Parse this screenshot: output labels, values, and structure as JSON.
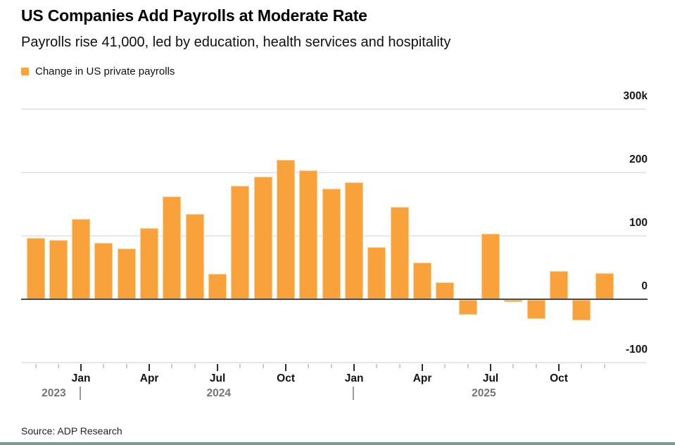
{
  "header": {
    "title": "US Companies Add Payrolls at Moderate Rate",
    "subtitle": "Payrolls rise 41,000, led by education, health services and hospitality"
  },
  "legend": {
    "label": "Change in US private payrolls",
    "swatch_color": "#F9A23B"
  },
  "chart_data": {
    "type": "bar",
    "title": "US Companies Add Payrolls at Moderate Rate",
    "series_name": "Change in US private payrolls",
    "unit": "thousands of jobs (k)",
    "bar_color": "#F9A23B",
    "grid": true,
    "legend_position": "top-left",
    "y_axis_side": "right",
    "ylim": [
      -130,
      310
    ],
    "categories": [
      "Nov 2023",
      "Dec 2023",
      "Jan 2024",
      "Feb 2024",
      "Mar 2024",
      "Apr 2024",
      "May 2024",
      "Jun 2024",
      "Jul 2024",
      "Aug 2024",
      "Sep 2024",
      "Oct 2024",
      "Nov 2024",
      "Dec 2024",
      "Jan 2025",
      "Feb 2025",
      "Mar 2025",
      "Apr 2025",
      "May 2025",
      "Jun 2025",
      "Jul 2025",
      "Aug 2025",
      "Sep 2025",
      "Oct 2025",
      "Nov 2025",
      "Dec 2025"
    ],
    "values": [
      97,
      93,
      127,
      89,
      80,
      112,
      162,
      134,
      40,
      179,
      193,
      220,
      203,
      175,
      185,
      82,
      146,
      58,
      27,
      -23,
      103,
      -3,
      -30,
      45,
      -32,
      41
    ],
    "y_axis": {
      "ticks": [
        {
          "label": "300k",
          "value": 300
        },
        {
          "label": "200",
          "value": 200
        },
        {
          "label": "100",
          "value": 100
        },
        {
          "label": "0",
          "value": 0
        },
        {
          "label": "-100",
          "value": -100
        }
      ]
    },
    "x_axis": {
      "major_ticks": [
        {
          "index": 2,
          "label": "Jan"
        },
        {
          "index": 5,
          "label": "Apr"
        },
        {
          "index": 8,
          "label": "Jul"
        },
        {
          "index": 11,
          "label": "Oct"
        },
        {
          "index": 14,
          "label": "Jan"
        },
        {
          "index": 17,
          "label": "Apr"
        },
        {
          "index": 20,
          "label": "Jul"
        },
        {
          "index": 23,
          "label": "Oct"
        }
      ],
      "year_labels": [
        {
          "label": "2023",
          "index": 0.8
        },
        {
          "label": "2024",
          "index": 8.05
        },
        {
          "label": "2025",
          "index": 19.7
        }
      ],
      "year_dividers": [
        {
          "index": 1.95
        },
        {
          "index": 13.97
        }
      ]
    }
  },
  "footer": {
    "source": "Source: ADP Research",
    "accent_color": "#7D9A93"
  }
}
